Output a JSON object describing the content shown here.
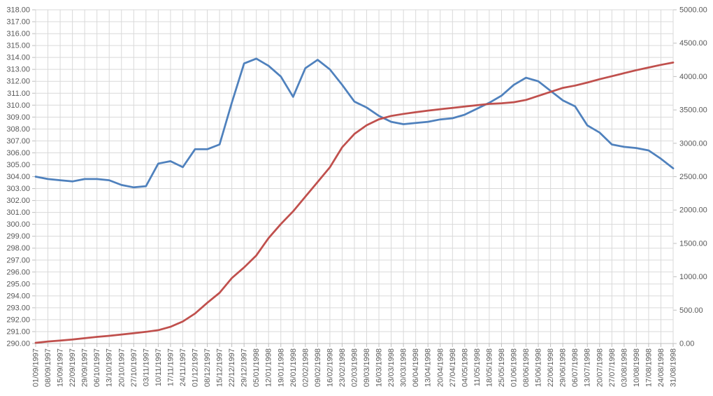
{
  "chart_data": {
    "type": "line",
    "title": "",
    "xlabel": "",
    "ylabel_left": "",
    "ylabel_right": "",
    "grid": true,
    "legend": "none",
    "background_color": "#ffffff",
    "gridline_color": "#d9d9d9",
    "axis_line_color": "#bfbfbf",
    "tick_label_color": "#595959",
    "x": [
      "01/09/1997",
      "08/09/1997",
      "15/09/1997",
      "22/09/1997",
      "29/09/1997",
      "06/10/1997",
      "13/10/1997",
      "20/10/1997",
      "27/10/1997",
      "03/11/1997",
      "10/11/1997",
      "17/11/1997",
      "24/11/1997",
      "01/12/1997",
      "08/12/1997",
      "15/12/1997",
      "22/12/1997",
      "29/12/1997",
      "05/01/1998",
      "12/01/1998",
      "19/01/1998",
      "26/01/1998",
      "02/02/1998",
      "09/02/1998",
      "16/02/1998",
      "23/02/1998",
      "02/03/1998",
      "09/03/1998",
      "16/03/1998",
      "23/03/1998",
      "30/03/1998",
      "06/04/1998",
      "13/04/1998",
      "20/04/1998",
      "27/04/1998",
      "04/05/1998",
      "11/05/1998",
      "18/05/1998",
      "25/05/1998",
      "01/06/1998",
      "08/06/1998",
      "15/06/1998",
      "22/06/1998",
      "29/06/1998",
      "06/07/1998",
      "13/07/1998",
      "20/07/1998",
      "27/07/1998",
      "03/08/1998",
      "10/08/1998",
      "17/08/1998",
      "24/08/1998",
      "31/08/1998"
    ],
    "series": [
      {
        "name": "price-series-blue",
        "axis": "left",
        "color": "#4F81BD",
        "stroke_width": 2.75,
        "values": [
          304.0,
          303.8,
          303.7,
          303.6,
          303.8,
          303.8,
          303.7,
          303.3,
          303.1,
          303.2,
          305.1,
          305.3,
          304.8,
          306.3,
          306.3,
          306.7,
          310.2,
          313.5,
          313.9,
          313.3,
          312.4,
          310.7,
          313.1,
          313.8,
          313.0,
          311.7,
          310.3,
          309.8,
          309.1,
          308.6,
          308.4,
          308.5,
          308.6,
          308.8,
          308.9,
          309.2,
          309.7,
          310.2,
          310.8,
          311.7,
          312.3,
          312.0,
          311.2,
          310.4,
          309.9,
          308.3,
          307.7,
          306.7,
          306.5,
          306.4,
          306.2,
          305.5,
          304.7
        ]
      },
      {
        "name": "cumulative-series-red",
        "axis": "right",
        "color": "#C0504D",
        "stroke_width": 2.75,
        "values": [
          10,
          30,
          45,
          60,
          80,
          100,
          115,
          135,
          155,
          175,
          200,
          250,
          330,
          450,
          610,
          760,
          980,
          1140,
          1320,
          1580,
          1790,
          1980,
          2200,
          2420,
          2640,
          2940,
          3140,
          3270,
          3360,
          3410,
          3440,
          3465,
          3490,
          3510,
          3530,
          3550,
          3570,
          3590,
          3600,
          3615,
          3650,
          3710,
          3770,
          3830,
          3865,
          3910,
          3960,
          4005,
          4050,
          4095,
          4135,
          4175,
          4210
        ]
      }
    ],
    "left_axis": {
      "min": 290,
      "max": 318,
      "step": 1,
      "tick_labels": [
        "318.00",
        "317.00",
        "316.00",
        "315.00",
        "314.00",
        "313.00",
        "312.00",
        "311.00",
        "310.00",
        "309.00",
        "308.00",
        "307.00",
        "306.00",
        "305.00",
        "304.00",
        "303.00",
        "302.00",
        "301.00",
        "300.00",
        "299.00",
        "298.00",
        "297.00",
        "296.00",
        "295.00",
        "294.00",
        "293.00",
        "292.00",
        "291.00",
        "290.00"
      ]
    },
    "right_axis": {
      "min": 0,
      "max": 5000,
      "step": 500,
      "tick_labels": [
        "5000.00",
        "4500.00",
        "4000.00",
        "3500.00",
        "3000.00",
        "2500.00",
        "2000.00",
        "1500.00",
        "1000.00",
        "500.00",
        "0.00"
      ]
    }
  }
}
